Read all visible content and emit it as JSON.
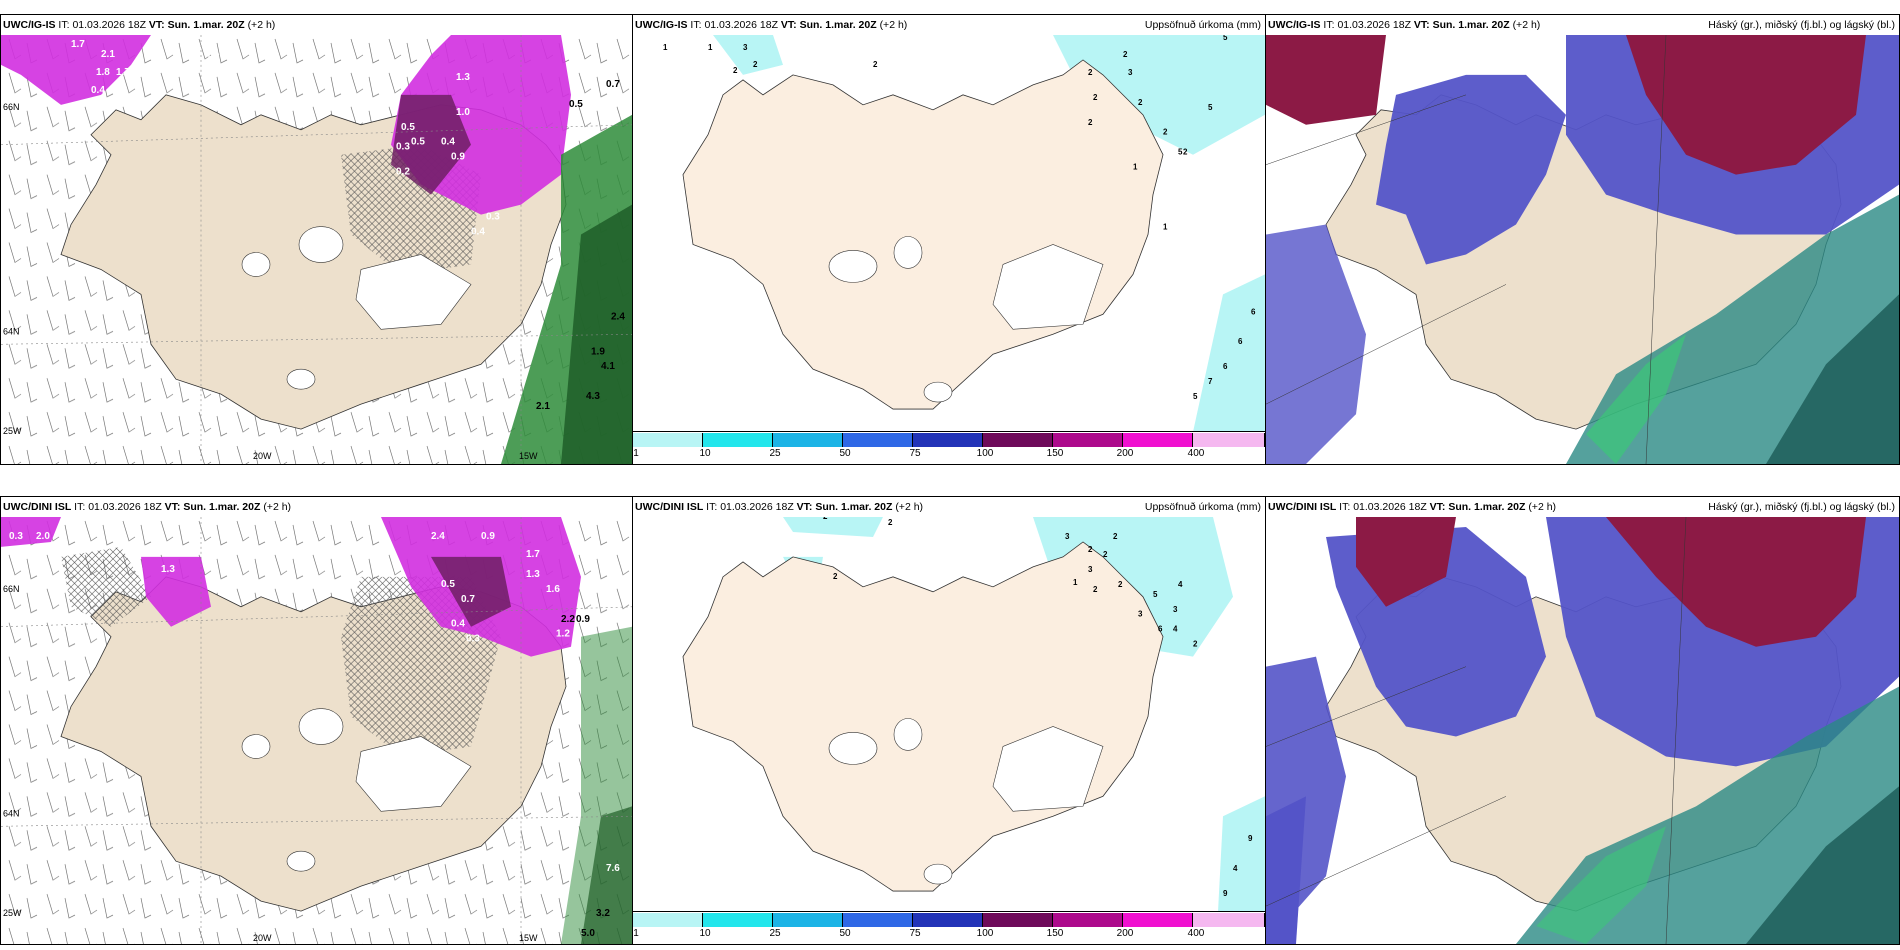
{
  "rows": [
    {
      "model": "UWC/IG-IS",
      "panels": [
        {
          "header_model": "UWC/IG-IS",
          "it_label": "IT:",
          "it": "01.03.2026 18Z",
          "vt_label": "VT:",
          "vt": "Sun. 1.mar. 20Z",
          "lead": "(+2 h)",
          "right": ""
        },
        {
          "header_model": "UWC/IG-IS",
          "it_label": "IT:",
          "it": "01.03.2026 18Z",
          "vt_label": "VT:",
          "vt": "Sun. 1.mar. 20Z",
          "lead": "(+2 h)",
          "right": "Uppsöfnuð úrkoma (mm)"
        },
        {
          "header_model": "UWC/IG-IS",
          "it_label": "IT:",
          "it": "01.03.2026 18Z",
          "vt_label": "VT:",
          "vt": "Sun. 1.mar. 20Z",
          "lead": "(+2 h)",
          "right": "Háský (gr.), miðský (fj.bl.) og lágský (bl.)"
        }
      ],
      "precip_labels_panel1": [
        "1.7",
        "2.1",
        "1.8",
        "1.7",
        "0.4",
        "1.6",
        "1.7",
        "0.5",
        "0.7",
        "0.5",
        "1.3",
        "1.0",
        "0.5",
        "0.4",
        "0.9",
        "0.3",
        "0.2",
        "0.3",
        "0.4",
        "2.4",
        "1.9",
        "4.1",
        "4.3",
        "2.1"
      ],
      "accum_labels_panel2": [
        "1",
        "1",
        "3",
        "2",
        "2",
        "2",
        "2",
        "2",
        "2",
        "2",
        "3",
        "2",
        "2",
        "1",
        "1",
        "5",
        "5",
        "5",
        "6",
        "6",
        "6",
        "7",
        "5",
        "2"
      ]
    },
    {
      "model": "UWC/DINI ISL",
      "panels": [
        {
          "header_model": "UWC/DINI ISL",
          "it_label": "IT:",
          "it": "01.03.2026 18Z",
          "vt_label": "VT:",
          "vt": "Sun. 1.mar. 20Z",
          "lead": "(+2 h)",
          "right": ""
        },
        {
          "header_model": "UWC/DINI ISL",
          "it_label": "IT:",
          "it": "01.03.2026 18Z",
          "vt_label": "VT:",
          "vt": "Sun. 1.mar. 20Z",
          "lead": "(+2 h)",
          "right": "Uppsöfnuð úrkoma (mm)"
        },
        {
          "header_model": "UWC/DINI ISL",
          "it_label": "IT:",
          "it": "01.03.2026 18Z",
          "vt_label": "VT:",
          "vt": "Sun. 1.mar. 20Z",
          "lead": "(+2 h)",
          "right": "Háský (gr.), miðský (fj.bl.) og lágský (bl.)"
        }
      ],
      "precip_labels_panel1": [
        "0.3",
        "2.0",
        "1.3",
        "2.4",
        "0.9",
        "1.7",
        "1.6",
        "1.3",
        "0.7",
        "0.5",
        "0.4",
        "0.3",
        "2.2",
        "0.9",
        "1.2",
        "7.6",
        "3.2",
        "5.0"
      ],
      "accum_labels_panel2": [
        "2",
        "2",
        "2",
        "3",
        "2",
        "2",
        "2",
        "3",
        "1",
        "2",
        "2",
        "4",
        "5",
        "3",
        "3",
        "6",
        "4",
        "2",
        "9",
        "4",
        "9"
      ]
    }
  ],
  "axis_labels": {
    "lon1": "20W",
    "lon2": "15W",
    "lat1": "66N",
    "lat2": "64N",
    "lat3": "25W"
  },
  "colorbar": {
    "ticks": [
      "1",
      "10",
      "25",
      "50",
      "75",
      "100",
      "150",
      "200",
      "400"
    ],
    "colors": [
      "#b8f5f5",
      "#22e6ec",
      "#1cb4e6",
      "#2f68e6",
      "#2334b8",
      "#6e0a5a",
      "#ad0a8c",
      "#f010d0",
      "#f5b8f0"
    ]
  },
  "colors": {
    "land": "#ede0cc",
    "land2": "#fbeee0",
    "sea": "#ffffff",
    "precip_purple": "#d22fe0",
    "precip_dark": "#6e1e64",
    "green": "#2e8c3a",
    "cyan": "#b8f5f5",
    "cloud_high": "#8c1a45",
    "cloud_mid": "#5454c8",
    "cloud_low": "#2a8a84"
  }
}
